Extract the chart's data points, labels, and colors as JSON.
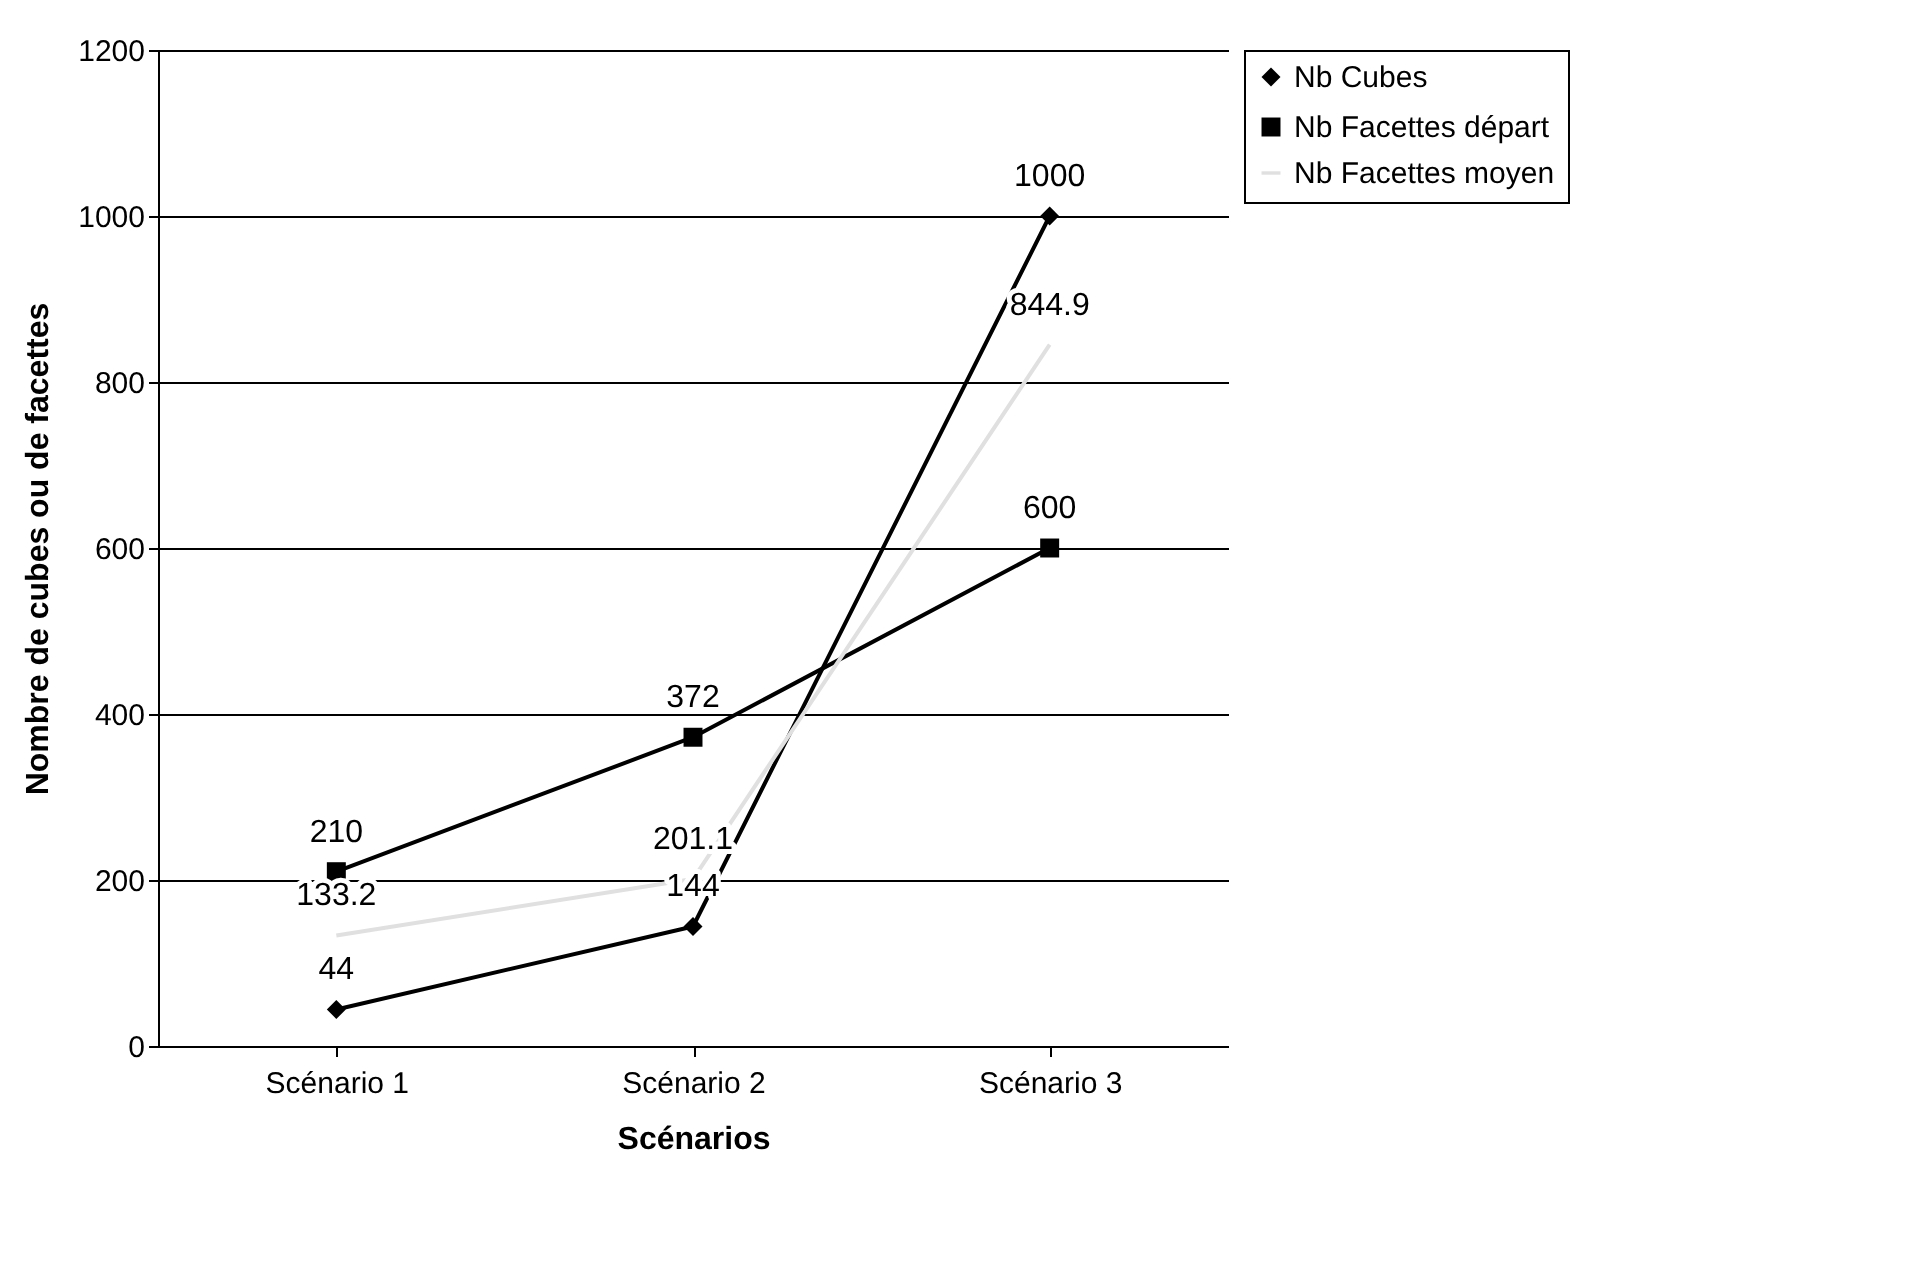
{
  "chart_data": {
    "type": "line",
    "xlabel": "Scénarios",
    "ylabel": "Nombre de cubes ou de facettes",
    "categories": [
      "Scénario 1",
      "Scénario 2",
      "Scénario 3"
    ],
    "series": [
      {
        "name": "Nb Cubes",
        "color": "#000000",
        "marker": "diamond",
        "values": [
          44,
          144,
          1000
        ]
      },
      {
        "name": "Nb Facettes départ",
        "color": "#000000",
        "marker": "square",
        "values": [
          210,
          372,
          600
        ]
      },
      {
        "name": "Nb Facettes moyen",
        "color": "#e0e0e0",
        "marker": "none",
        "values": [
          133.2,
          201.1,
          844.9
        ]
      }
    ],
    "ylim": [
      0,
      1200
    ],
    "yticks": [
      0,
      200,
      400,
      600,
      800,
      1000,
      1200
    ],
    "grid": "y",
    "legend": "right",
    "data_labels": true,
    "line_style": "solid"
  }
}
